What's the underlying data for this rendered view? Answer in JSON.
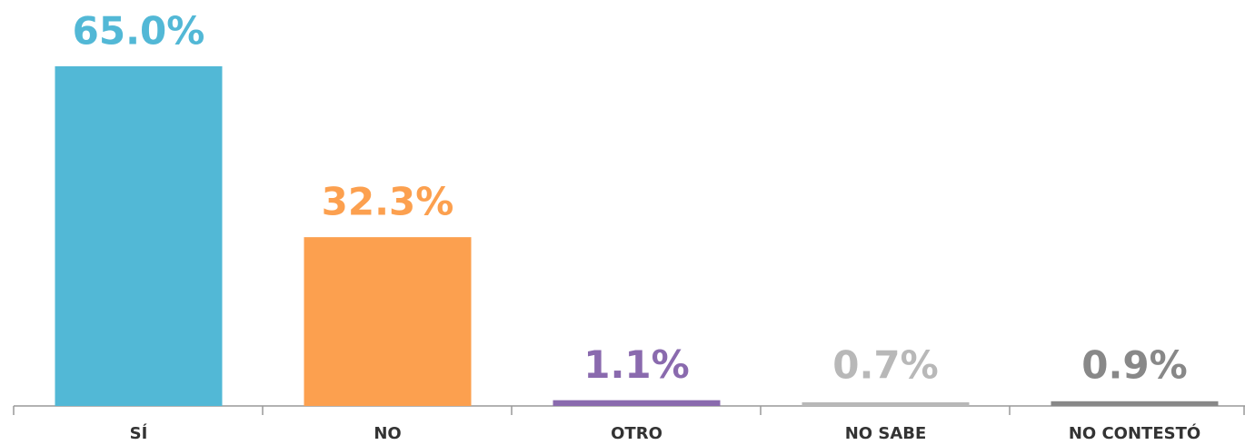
{
  "chart_data": {
    "type": "bar",
    "categories": [
      "SÍ",
      "NO",
      "OTRO",
      "NO SABE",
      "NO CONTESTÓ"
    ],
    "values": [
      65.0,
      32.3,
      1.1,
      0.7,
      0.9
    ],
    "value_labels": [
      "65.0%",
      "32.3%",
      "1.1%",
      "0.7%",
      "0.9%"
    ],
    "colors": [
      "#52b8d6",
      "#fca04f",
      "#8a6aae",
      "#b8b8b8",
      "#888888"
    ]
  }
}
